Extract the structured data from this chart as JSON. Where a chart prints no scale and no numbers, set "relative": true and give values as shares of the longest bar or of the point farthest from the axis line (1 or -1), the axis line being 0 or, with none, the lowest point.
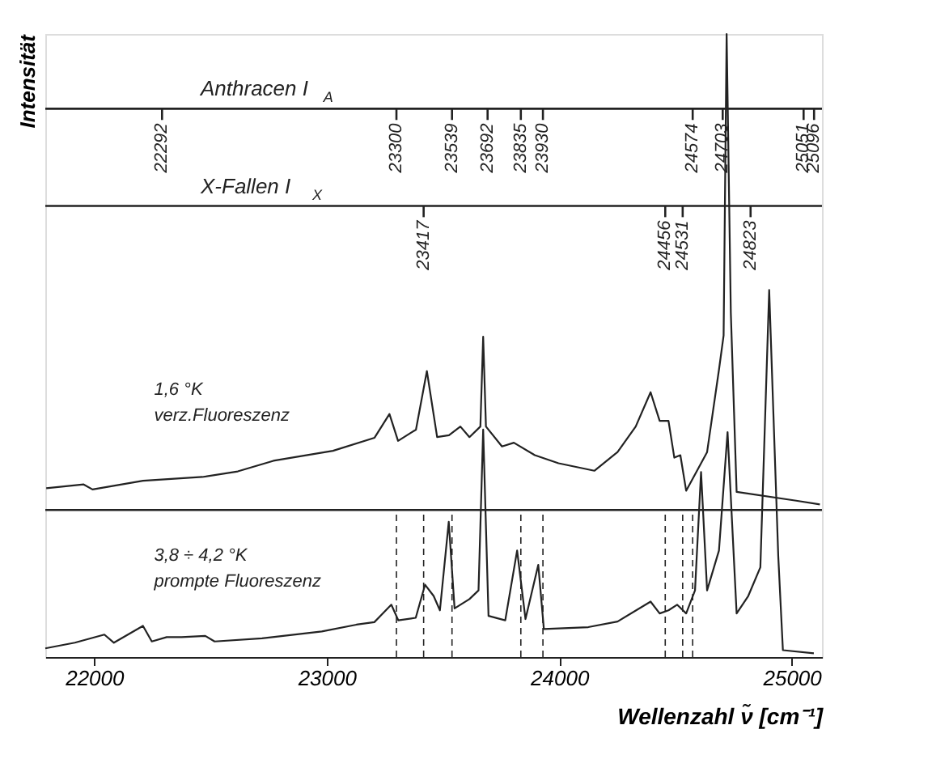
{
  "chart_data": {
    "type": "line",
    "relative": true,
    "xlabel": "Wellenzahl ν̃ [cm⁻¹]",
    "ylabel": "Intensität",
    "xlim": [
      21790,
      25130
    ],
    "xticks": [
      22000,
      23000,
      24000,
      25000
    ],
    "grid": false,
    "series": [
      {
        "name": "1,6 °K\nverz.Fluoreszenz",
        "color": "#222222",
        "x": [
          21794,
          21955,
          21993,
          22210,
          22465,
          22618,
          22771,
          23027,
          23206,
          23270,
          23307,
          23384,
          23431,
          23475,
          23526,
          23575,
          23614,
          23661,
          23673,
          23685,
          23754,
          23805,
          23895,
          23997,
          24151,
          24251,
          24329,
          24393,
          24432,
          24470,
          24495,
          24521,
          24546,
          24636,
          24687,
          24707,
          24720,
          24738,
          24763,
          25019,
          25121
        ],
        "values": [
          0.271,
          0.277,
          0.269,
          0.283,
          0.289,
          0.298,
          0.315,
          0.331,
          0.352,
          0.39,
          0.347,
          0.365,
          0.459,
          0.353,
          0.356,
          0.37,
          0.353,
          0.37,
          0.514,
          0.37,
          0.338,
          0.344,
          0.324,
          0.311,
          0.299,
          0.329,
          0.37,
          0.425,
          0.379,
          0.379,
          0.32,
          0.324,
          0.267,
          0.329,
          0.461,
          0.516,
          1.0,
          0.553,
          0.265,
          0.251,
          0.245
        ]
      },
      {
        "name": "3,8 ÷ 4,2 °K\nprompte Fluoreszenz",
        "color": "#222222",
        "x": [
          21790,
          21917,
          22044,
          22085,
          22210,
          22248,
          22312,
          22376,
          22478,
          22518,
          22722,
          22979,
          23128,
          23205,
          23278,
          23308,
          23383,
          23423,
          23460,
          23487,
          23525,
          23550,
          23614,
          23653,
          23673,
          23696,
          23768,
          23819,
          23855,
          23910,
          23934,
          24125,
          24251,
          24393,
          24432,
          24470,
          24507,
          24546,
          24584,
          24610,
          24636,
          24687,
          24724,
          24763,
          24813,
          24865,
          24903,
          24942,
          24962,
          25095
        ],
        "values": [
          0.014,
          0.023,
          0.036,
          0.023,
          0.05,
          0.025,
          0.032,
          0.032,
          0.034,
          0.025,
          0.03,
          0.041,
          0.052,
          0.056,
          0.084,
          0.059,
          0.063,
          0.116,
          0.098,
          0.075,
          0.217,
          0.078,
          0.093,
          0.107,
          0.365,
          0.066,
          0.059,
          0.171,
          0.061,
          0.148,
          0.045,
          0.048,
          0.057,
          0.089,
          0.07,
          0.075,
          0.084,
          0.07,
          0.107,
          0.297,
          0.107,
          0.171,
          0.361,
          0.07,
          0.098,
          0.144,
          0.589,
          0.162,
          0.011,
          0.006
        ]
      }
    ],
    "ref_lines": [
      {
        "axis": "y",
        "value": 0.88,
        "label": "Anthracen I$_{A}$",
        "color": "#222222"
      },
      {
        "axis": "y",
        "value": 0.724,
        "label": "X-Fallen I$_{X}$",
        "color": "#222222"
      },
      {
        "axis": "y",
        "value": 0.236,
        "color": "#222222"
      },
      {
        "axis": "x",
        "value": 23300,
        "line_style": "dashed",
        "color": "#222222"
      },
      {
        "axis": "x",
        "value": 23417,
        "line_style": "dashed",
        "color": "#222222"
      },
      {
        "axis": "x",
        "value": 23539,
        "line_style": "dashed",
        "color": "#222222"
      },
      {
        "axis": "x",
        "value": 23835,
        "line_style": "dashed",
        "color": "#222222"
      },
      {
        "axis": "x",
        "value": 23930,
        "line_style": "dashed",
        "color": "#222222"
      },
      {
        "axis": "x",
        "value": 24456,
        "line_style": "dashed",
        "color": "#222222"
      },
      {
        "axis": "x",
        "value": 24531,
        "line_style": "dashed",
        "color": "#222222"
      },
      {
        "axis": "x",
        "value": 24574,
        "line_style": "dashed",
        "color": "#222222"
      }
    ],
    "annotations": [
      {
        "text": "22292",
        "x": 22292,
        "y": 0.88
      },
      {
        "text": "23300",
        "x": 23300,
        "y": 0.88
      },
      {
        "text": "23539",
        "x": 23539,
        "y": 0.88
      },
      {
        "text": "23692",
        "x": 23692,
        "y": 0.88
      },
      {
        "text": "23835",
        "x": 23835,
        "y": 0.88
      },
      {
        "text": "23930",
        "x": 23930,
        "y": 0.88
      },
      {
        "text": "24574",
        "x": 24574,
        "y": 0.88
      },
      {
        "text": "24703",
        "x": 24703,
        "y": 0.88
      },
      {
        "text": "25051",
        "x": 25051,
        "y": 0.88
      },
      {
        "text": "25096",
        "x": 25096,
        "y": 0.88
      },
      {
        "text": "23417",
        "x": 23417,
        "y": 0.724
      },
      {
        "text": "24456",
        "x": 24456,
        "y": 0.724
      },
      {
        "text": "24531",
        "x": 24531,
        "y": 0.724
      },
      {
        "text": "24823",
        "x": 24823,
        "y": 0.724
      }
    ]
  }
}
